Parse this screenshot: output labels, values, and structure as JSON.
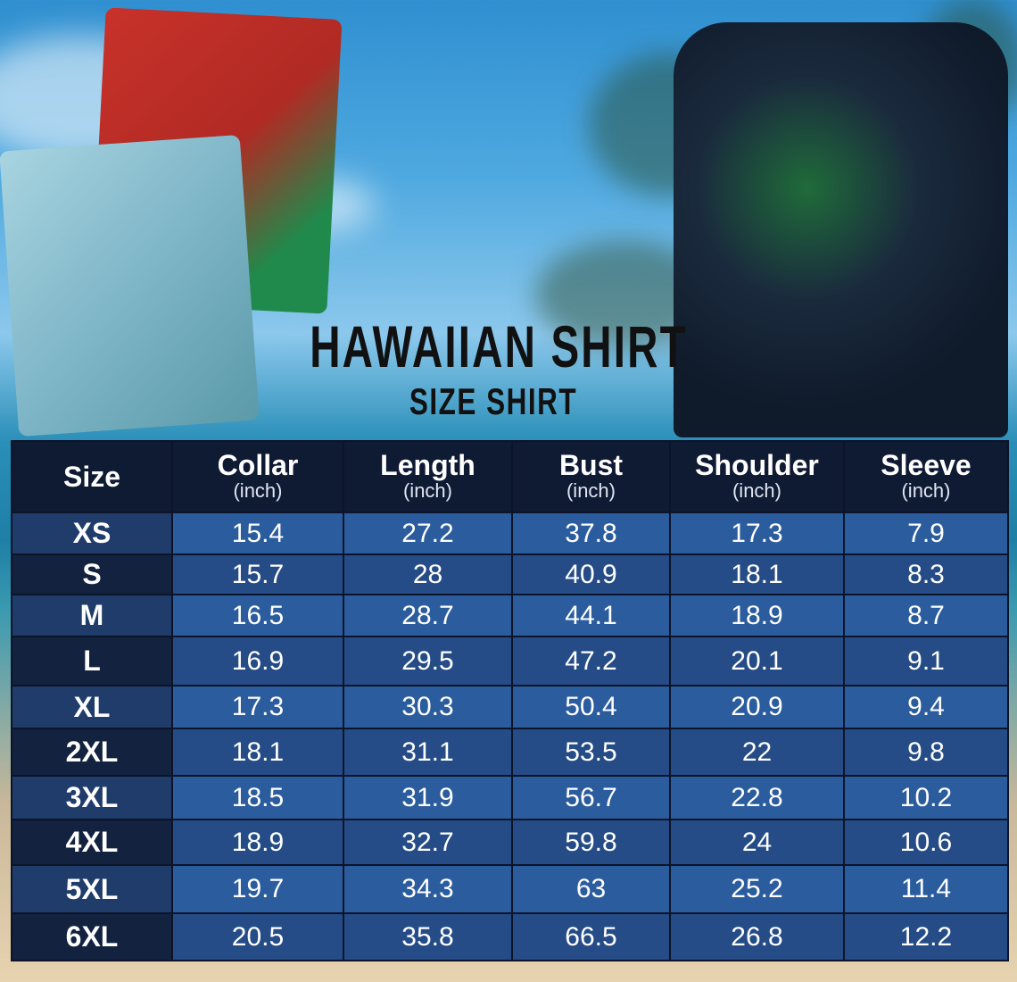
{
  "title": "HAWAIIAN SHIRT",
  "subtitle": "SIZE SHIRT",
  "colors": {
    "header": "#0f1a33",
    "row_light": "#2b5c9e",
    "row_dark": "#254c86",
    "text": "#ffffff"
  },
  "table": {
    "headers": [
      {
        "label": "Size",
        "unit": ""
      },
      {
        "label": "Collar",
        "unit": "(inch)"
      },
      {
        "label": "Length",
        "unit": "(inch)"
      },
      {
        "label": "Bust",
        "unit": "(inch)"
      },
      {
        "label": "Shoulder",
        "unit": "(inch)"
      },
      {
        "label": "Sleeve",
        "unit": "(inch)"
      }
    ],
    "rows": [
      [
        "XS",
        "15.4",
        "27.2",
        "37.8",
        "17.3",
        "7.9"
      ],
      [
        "S",
        "15.7",
        "28",
        "40.9",
        "18.1",
        "8.3"
      ],
      [
        "M",
        "16.5",
        "28.7",
        "44.1",
        "18.9",
        "8.7"
      ],
      [
        "L",
        "16.9",
        "29.5",
        "47.2",
        "20.1",
        "9.1"
      ],
      [
        "XL",
        "17.3",
        "30.3",
        "50.4",
        "20.9",
        "9.4"
      ],
      [
        "2XL",
        "18.1",
        "31.1",
        "53.5",
        "22",
        "9.8"
      ],
      [
        "3XL",
        "18.5",
        "31.9",
        "56.7",
        "22.8",
        "10.2"
      ],
      [
        "4XL",
        "18.9",
        "32.7",
        "59.8",
        "24",
        "10.6"
      ],
      [
        "5XL",
        "19.7",
        "34.3",
        "63",
        "25.2",
        "11.4"
      ],
      [
        "6XL",
        "20.5",
        "35.8",
        "66.5",
        "26.8",
        "12.2"
      ]
    ]
  }
}
